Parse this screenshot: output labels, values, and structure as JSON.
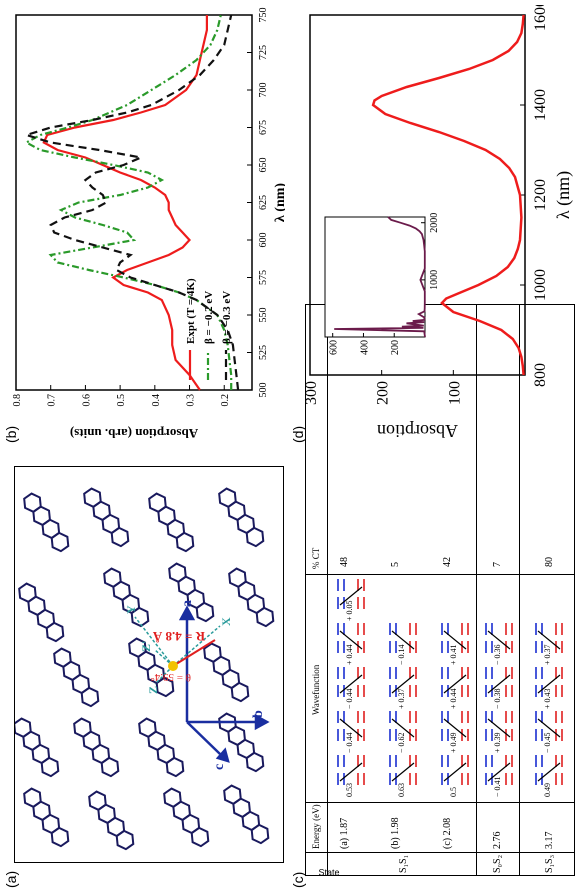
{
  "panels": {
    "a": {
      "label": "(a)"
    },
    "b": {
      "label": "(b)"
    },
    "c": {
      "label": "(c)"
    },
    "d": {
      "label": "(d)"
    }
  },
  "lattice": {
    "axis_a": "a",
    "axis_b": "b",
    "axis_c": "c",
    "local_x": "X",
    "local_y": "Y",
    "local_z": "Z",
    "local_z2": "Z'",
    "distance_label": "R = 4.8 Å",
    "angle_label": "θ = 59.4°",
    "colors": {
      "molecule": "#1a1a5e",
      "axes": "#1a2ea0",
      "R": "#e02020",
      "local": "#2a9b9b",
      "highlight": "#f2c200"
    }
  },
  "table": {
    "headers": {
      "state": "State",
      "energy": "Energy (eV)",
      "wavefunction": "Wavefunction",
      "ct": "% CT"
    },
    "rows": [
      {
        "state": "S₁S₁",
        "energy_lines": [
          "(a) 1.87",
          "(b) 1.98",
          "(c) 2.08"
        ],
        "coefficients": [
          [
            "0.53",
            "− 0.44",
            "− 0.44",
            "+ 0.44",
            "+ 0.05"
          ],
          [
            "0.63",
            "− 0.62",
            "+ 0.37",
            "− 0.14",
            ""
          ],
          [
            "0.5",
            "+ 0.49",
            "+ 0.44",
            "+ 0.41",
            ""
          ]
        ],
        "ct_lines": [
          "48",
          "5",
          "42"
        ]
      },
      {
        "state": "S₀S₂",
        "energy_lines": [
          "2.76"
        ],
        "coefficients": [
          [
            "− 0.41",
            "+ 0.39",
            "− 0.38",
            "− 0.36"
          ]
        ],
        "ct_lines": [
          "7"
        ]
      },
      {
        "state": "S₁S₃",
        "energy_lines": [
          "3.17"
        ],
        "coefficients": [
          [
            "0.49",
            "− 0.45",
            "+ 0.43",
            "+ 0.37"
          ]
        ],
        "ct_lines": [
          "80"
        ]
      }
    ],
    "colors": {
      "blue": "#1a2ed0",
      "red": "#e02020"
    }
  },
  "chart_data": [
    {
      "type": "line",
      "panel": "b",
      "xlabel": "λ (nm)",
      "ylabel": "Absorption (arb. units)",
      "xlim": [
        500,
        750
      ],
      "ylim": [
        0.12,
        0.8
      ],
      "xticks": [
        500,
        525,
        550,
        575,
        600,
        625,
        650,
        675,
        700,
        725,
        750
      ],
      "yticks": [
        0.2,
        0.3,
        0.4,
        0.5,
        0.6,
        0.7,
        0.8
      ],
      "legend_position": "bottom-left",
      "series": [
        {
          "name": "Expt (T = 4K)",
          "color": "#ee1c1c",
          "dash": "none",
          "x": [
            500,
            510,
            520,
            530,
            540,
            550,
            560,
            565,
            570,
            575,
            580,
            585,
            590,
            595,
            600,
            605,
            610,
            615,
            620,
            625,
            630,
            635,
            640,
            645,
            650,
            655,
            660,
            665,
            670,
            675,
            680,
            685,
            690,
            700,
            710,
            720,
            730,
            740,
            750
          ],
          "y": [
            0.27,
            0.3,
            0.34,
            0.35,
            0.35,
            0.36,
            0.38,
            0.42,
            0.49,
            0.52,
            0.48,
            0.42,
            0.36,
            0.32,
            0.3,
            0.32,
            0.34,
            0.35,
            0.36,
            0.36,
            0.37,
            0.4,
            0.44,
            0.5,
            0.55,
            0.6,
            0.68,
            0.72,
            0.71,
            0.63,
            0.52,
            0.44,
            0.37,
            0.31,
            0.28,
            0.27,
            0.26,
            0.25,
            0.25
          ]
        },
        {
          "name": "β = −0.2 eV",
          "color": "#2a9a2a",
          "dash": "7,3,2,3",
          "x": [
            500,
            510,
            520,
            530,
            540,
            550,
            560,
            565,
            570,
            575,
            580,
            585,
            590,
            595,
            600,
            605,
            610,
            615,
            620,
            625,
            630,
            635,
            640,
            645,
            650,
            655,
            660,
            665,
            670,
            675,
            680,
            685,
            690,
            700,
            710,
            720,
            730,
            740,
            750
          ],
          "y": [
            0.18,
            0.18,
            0.185,
            0.19,
            0.2,
            0.22,
            0.28,
            0.33,
            0.4,
            0.49,
            0.59,
            0.68,
            0.7,
            0.58,
            0.46,
            0.48,
            0.55,
            0.63,
            0.67,
            0.62,
            0.5,
            0.42,
            0.38,
            0.42,
            0.52,
            0.63,
            0.73,
            0.77,
            0.73,
            0.65,
            0.58,
            0.53,
            0.48,
            0.41,
            0.34,
            0.28,
            0.24,
            0.22,
            0.21
          ]
        },
        {
          "name": "β = −0.3 eV",
          "color": "#111111",
          "dash": "8,5",
          "x": [
            500,
            510,
            520,
            530,
            540,
            550,
            560,
            565,
            570,
            575,
            580,
            585,
            590,
            595,
            600,
            605,
            610,
            615,
            620,
            625,
            630,
            635,
            640,
            645,
            650,
            655,
            660,
            665,
            670,
            675,
            680,
            685,
            690,
            700,
            710,
            720,
            730,
            740,
            750
          ],
          "y": [
            0.16,
            0.165,
            0.17,
            0.175,
            0.19,
            0.22,
            0.28,
            0.33,
            0.4,
            0.47,
            0.51,
            0.5,
            0.47,
            0.55,
            0.63,
            0.69,
            0.7,
            0.66,
            0.58,
            0.54,
            0.55,
            0.58,
            0.6,
            0.57,
            0.49,
            0.44,
            0.56,
            0.7,
            0.77,
            0.7,
            0.58,
            0.48,
            0.41,
            0.33,
            0.27,
            0.23,
            0.2,
            0.19,
            0.18
          ]
        }
      ]
    },
    {
      "type": "line",
      "panel": "d",
      "xlabel": "λ (nm)",
      "ylabel": "Absorption",
      "xlim": [
        800,
        1600
      ],
      "ylim": [
        0,
        300
      ],
      "xticks": [
        800,
        1000,
        1200,
        1400,
        1600
      ],
      "yticks": [
        100,
        200,
        300
      ],
      "series": [
        {
          "name": "",
          "color": "#ee1c1c",
          "x": [
            800,
            820,
            840,
            860,
            880,
            900,
            920,
            940,
            960,
            970,
            980,
            1000,
            1020,
            1040,
            1060,
            1080,
            1100,
            1150,
            1200,
            1240,
            1260,
            1280,
            1300,
            1320,
            1340,
            1360,
            1380,
            1400,
            1410,
            1420,
            1440,
            1460,
            1480,
            1500,
            1520,
            1540,
            1560,
            1580,
            1600
          ],
          "y": [
            2,
            3,
            5,
            9,
            17,
            33,
            63,
            100,
            116,
            110,
            95,
            65,
            40,
            24,
            15,
            10,
            7,
            5,
            7,
            14,
            22,
            35,
            55,
            85,
            120,
            160,
            195,
            212,
            210,
            200,
            165,
            120,
            78,
            45,
            23,
            11,
            5,
            3,
            2
          ]
        }
      ],
      "inset": {
        "type": "line",
        "xlim": [
          0,
          2100
        ],
        "ylim": [
          0,
          650
        ],
        "xticks": [
          1000,
          2000
        ],
        "yticks": [
          200,
          400,
          600
        ],
        "color": "#6b1b4b",
        "x": [
          0,
          100,
          140,
          160,
          180,
          200,
          240,
          260,
          280,
          300,
          340,
          400,
          450,
          500,
          600,
          800,
          1000,
          1200,
          1400,
          1500,
          1600,
          1700,
          1800,
          1850,
          1900,
          1950,
          2000,
          2050,
          2100
        ],
        "y": [
          0,
          5,
          590,
          10,
          150,
          8,
          120,
          5,
          80,
          5,
          3,
          40,
          3,
          2,
          1,
          1,
          30,
          1,
          1,
          1,
          5,
          10,
          20,
          35,
          60,
          100,
          160,
          220,
          240
        ]
      }
    }
  ]
}
